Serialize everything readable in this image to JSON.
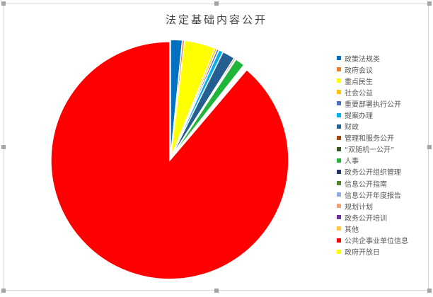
{
  "chart_data": {
    "type": "pie",
    "title": "法定基础内容公开",
    "legend_position": "right",
    "categories": [
      "政策法规类",
      "政府会议",
      "重点民生",
      "社会公益",
      "重要部署执行公开",
      "提案办理",
      "财政",
      "管理和服务公开",
      "“双随机一公开”",
      "人事",
      "政务公开组织管理",
      "信息公开指南",
      "信息公开年度报告",
      "规划计划",
      "政务公开培训",
      "其他",
      "公共企事业单位信息",
      "政府开放日"
    ],
    "values": [
      1.6,
      0.3,
      4.2,
      0.3,
      0.3,
      0.6,
      1.7,
      0.2,
      0.1,
      1.3,
      0.1,
      0.1,
      0.1,
      0.1,
      0.1,
      0.1,
      88.8,
      0.0
    ],
    "colors": [
      "#0070c0",
      "#ed7d31",
      "#ffff00",
      "#ffc000",
      "#4472c4",
      "#00b0f0",
      "#255e91",
      "#9e480e",
      "#375623",
      "#1fb53a",
      "#203864",
      "#548235",
      "#8faadc",
      "#f4a07a",
      "#7030a0",
      "#ffc83d",
      "#ff0000",
      "#ffff00"
    ],
    "exploded": "公共企事业单位信息"
  }
}
